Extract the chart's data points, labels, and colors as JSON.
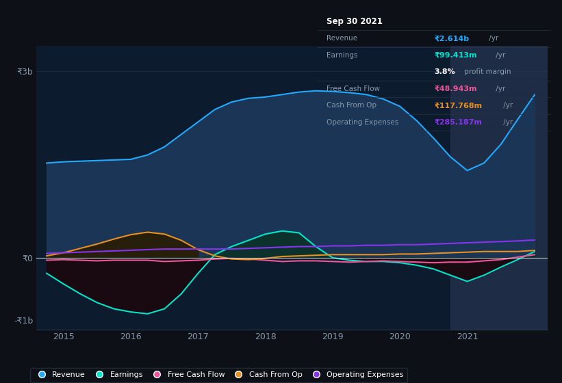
{
  "bg_color": "#0d1117",
  "plot_bg_color": "#0d1b2e",
  "ylim_min": -1150000000.0,
  "ylim_max": 3400000000.0,
  "xlim_min": 2014.6,
  "xlim_max": 2022.2,
  "xticks": [
    2015,
    2016,
    2017,
    2018,
    2019,
    2020,
    2021
  ],
  "ytick_vals": [
    -1000000000.0,
    0,
    3000000000.0
  ],
  "ytick_labels": [
    "-₹1b",
    "₹0",
    "₹3b"
  ],
  "revenue_color": "#22aaff",
  "revenue_fill": "#1a3555",
  "earnings_color": "#00e5cc",
  "earnings_fill": "#0d3028",
  "fcf_color": "#ee5599",
  "cashfromop_color": "#e89020",
  "opex_color": "#8833ee",
  "highlight_x0": 2020.75,
  "highlight_x1": 2022.2,
  "highlight_color": "#1e2d45",
  "zero_line_color": "#dddddd",
  "tick_color": "#8899aa",
  "tooltip_bg": "#06090f",
  "tooltip_border": "#2a3040",
  "revenue_x": [
    2014.75,
    2015.0,
    2015.25,
    2015.5,
    2015.75,
    2016.0,
    2016.25,
    2016.5,
    2016.75,
    2017.0,
    2017.25,
    2017.5,
    2017.75,
    2018.0,
    2018.25,
    2018.5,
    2018.75,
    2019.0,
    2019.25,
    2019.5,
    2019.75,
    2020.0,
    2020.25,
    2020.5,
    2020.75,
    2021.0,
    2021.25,
    2021.5,
    2021.75,
    2022.0
  ],
  "revenue_y": [
    1520000000.0,
    1540000000.0,
    1550000000.0,
    1560000000.0,
    1570000000.0,
    1580000000.0,
    1650000000.0,
    1780000000.0,
    1980000000.0,
    2180000000.0,
    2380000000.0,
    2500000000.0,
    2560000000.0,
    2580000000.0,
    2620000000.0,
    2660000000.0,
    2680000000.0,
    2670000000.0,
    2650000000.0,
    2620000000.0,
    2550000000.0,
    2430000000.0,
    2200000000.0,
    1920000000.0,
    1620000000.0,
    1400000000.0,
    1520000000.0,
    1820000000.0,
    2220000000.0,
    2614000000.0
  ],
  "earnings_x": [
    2014.75,
    2015.0,
    2015.25,
    2015.5,
    2015.75,
    2016.0,
    2016.25,
    2016.5,
    2016.75,
    2017.0,
    2017.25,
    2017.5,
    2017.75,
    2018.0,
    2018.25,
    2018.5,
    2018.75,
    2019.0,
    2019.25,
    2019.5,
    2019.75,
    2020.0,
    2020.25,
    2020.5,
    2020.75,
    2021.0,
    2021.25,
    2021.5,
    2021.75,
    2022.0
  ],
  "earnings_y": [
    -250000000.0,
    -420000000.0,
    -580000000.0,
    -720000000.0,
    -820000000.0,
    -870000000.0,
    -900000000.0,
    -820000000.0,
    -580000000.0,
    -250000000.0,
    50000000.0,
    180000000.0,
    280000000.0,
    380000000.0,
    430000000.0,
    400000000.0,
    180000000.0,
    0.0,
    -40000000.0,
    -60000000.0,
    -60000000.0,
    -80000000.0,
    -120000000.0,
    -180000000.0,
    -280000000.0,
    -380000000.0,
    -280000000.0,
    -150000000.0,
    -30000000.0,
    99000000.0
  ],
  "fcf_x": [
    2014.75,
    2015.0,
    2015.25,
    2015.5,
    2015.75,
    2016.0,
    2016.25,
    2016.5,
    2016.75,
    2017.0,
    2017.25,
    2017.5,
    2017.75,
    2018.0,
    2018.25,
    2018.5,
    2018.75,
    2019.0,
    2019.25,
    2019.5,
    2019.75,
    2020.0,
    2020.25,
    2020.5,
    2020.75,
    2021.0,
    2021.25,
    2021.5,
    2021.75,
    2022.0
  ],
  "fcf_y": [
    -40000000.0,
    -30000000.0,
    -40000000.0,
    -50000000.0,
    -40000000.0,
    -40000000.0,
    -40000000.0,
    -60000000.0,
    -50000000.0,
    -40000000.0,
    -20000000.0,
    -10000000.0,
    -20000000.0,
    -40000000.0,
    -60000000.0,
    -50000000.0,
    -50000000.0,
    -60000000.0,
    -70000000.0,
    -60000000.0,
    -50000000.0,
    -60000000.0,
    -70000000.0,
    -80000000.0,
    -70000000.0,
    -70000000.0,
    -50000000.0,
    -30000000.0,
    10000000.0,
    49000000.0
  ],
  "cashfromop_x": [
    2014.75,
    2015.0,
    2015.25,
    2015.5,
    2015.75,
    2016.0,
    2016.25,
    2016.5,
    2016.75,
    2017.0,
    2017.25,
    2017.5,
    2017.75,
    2018.0,
    2018.25,
    2018.5,
    2018.75,
    2019.0,
    2019.25,
    2019.5,
    2019.75,
    2020.0,
    2020.25,
    2020.5,
    2020.75,
    2021.0,
    2021.25,
    2021.5,
    2021.75,
    2022.0
  ],
  "cashfromop_y": [
    30000000.0,
    80000000.0,
    150000000.0,
    220000000.0,
    300000000.0,
    370000000.0,
    410000000.0,
    380000000.0,
    280000000.0,
    130000000.0,
    30000000.0,
    -20000000.0,
    -30000000.0,
    -10000000.0,
    20000000.0,
    30000000.0,
    40000000.0,
    50000000.0,
    50000000.0,
    50000000.0,
    50000000.0,
    60000000.0,
    60000000.0,
    70000000.0,
    80000000.0,
    90000000.0,
    100000000.0,
    100000000.0,
    100000000.0,
    117800000.0
  ],
  "opex_x": [
    2014.75,
    2015.0,
    2015.25,
    2015.5,
    2015.75,
    2016.0,
    2016.25,
    2016.5,
    2016.75,
    2017.0,
    2017.25,
    2017.5,
    2017.75,
    2018.0,
    2018.25,
    2018.5,
    2018.75,
    2019.0,
    2019.25,
    2019.5,
    2019.75,
    2020.0,
    2020.25,
    2020.5,
    2020.75,
    2021.0,
    2021.25,
    2021.5,
    2021.75,
    2022.0
  ],
  "opex_y": [
    70000000.0,
    80000000.0,
    90000000.0,
    100000000.0,
    110000000.0,
    120000000.0,
    130000000.0,
    140000000.0,
    140000000.0,
    140000000.0,
    140000000.0,
    140000000.0,
    150000000.0,
    160000000.0,
    170000000.0,
    180000000.0,
    180000000.0,
    190000000.0,
    190000000.0,
    200000000.0,
    200000000.0,
    210000000.0,
    210000000.0,
    220000000.0,
    230000000.0,
    240000000.0,
    250000000.0,
    260000000.0,
    270000000.0,
    285000000.0
  ],
  "legend_items": [
    "Revenue",
    "Earnings",
    "Free Cash Flow",
    "Cash From Op",
    "Operating Expenses"
  ],
  "legend_colors": [
    "#22aaff",
    "#00e5cc",
    "#ee5599",
    "#e89020",
    "#8833ee"
  ]
}
